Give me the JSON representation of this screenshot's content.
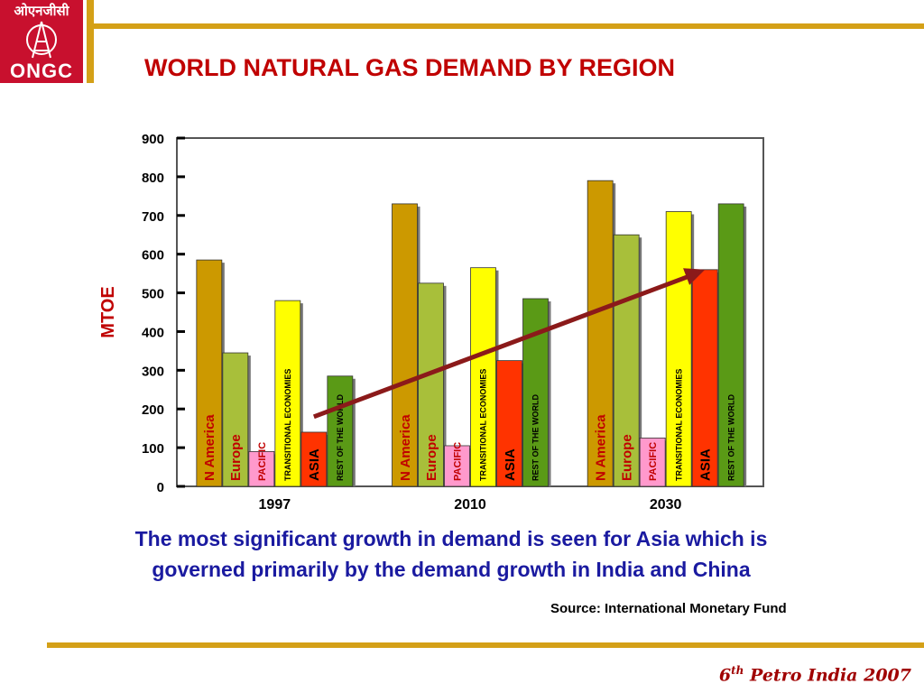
{
  "logo": {
    "hindi": "ओएनजीसी",
    "text": "ONGC"
  },
  "title": "WORLD NATURAL GAS DEMAND BY REGION",
  "chart_data": {
    "type": "bar",
    "ylabel": "MTOE",
    "ylim": [
      0,
      900
    ],
    "yticks": [
      0,
      100,
      200,
      300,
      400,
      500,
      600,
      700,
      800,
      900
    ],
    "categories": [
      "1997",
      "2010",
      "2030"
    ],
    "series": [
      {
        "name": "N America",
        "color": "#cc9900",
        "label_color": "#c00000",
        "label_style": "large",
        "values": [
          585,
          730,
          790
        ]
      },
      {
        "name": "Europe",
        "color": "#a8bf3a",
        "label_color": "#c00000",
        "label_style": "large",
        "values": [
          345,
          525,
          650
        ]
      },
      {
        "name": "PACIFIC",
        "color": "#ff99cc",
        "label_color": "#c00000",
        "label_style": "small",
        "values": [
          90,
          105,
          125
        ]
      },
      {
        "name": "TRANSITIONAL ECONOMIES",
        "color": "#ffff00",
        "label_color": "#000000",
        "label_style": "tiny",
        "values": [
          480,
          565,
          710
        ]
      },
      {
        "name": "ASIA",
        "color": "#ff3300",
        "label_color": "#000000",
        "label_style": "large",
        "values": [
          140,
          325,
          560
        ]
      },
      {
        "name": "REST OF THE WORLD",
        "color": "#5a9a16",
        "label_color": "#000000",
        "label_style": "tiny",
        "values": [
          285,
          485,
          730
        ]
      }
    ],
    "trend_arrow": {
      "from": {
        "category": "1997",
        "value": 180
      },
      "to": {
        "category": "2030",
        "value": 560
      },
      "color": "#8b1a1a"
    },
    "legend": "none",
    "grid": false
  },
  "caption": {
    "line1": "The most significant growth in demand is seen for Asia which is",
    "line2": "governed primarily by the demand growth in India and China"
  },
  "source": "Source: International Monetary Fund",
  "footer": {
    "number": "6",
    "suffix": "th",
    "text": " Petro India 2007"
  },
  "colors": {
    "accent": "#d4a017",
    "title": "#c00000",
    "caption": "#1a1aa0"
  }
}
